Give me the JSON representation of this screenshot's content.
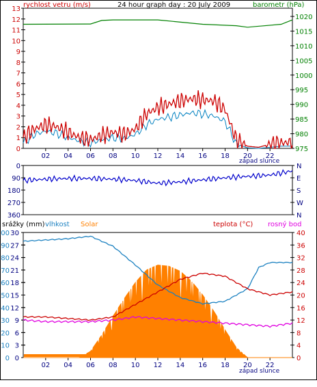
{
  "top_chart": {
    "left_title": "rychlost vetru (m/s)",
    "center_title": "24 hour graph day : 20 July 2009",
    "right_title": "barometr (hPa)",
    "left_ticks": [
      "0",
      "1",
      "2",
      "3",
      "4",
      "5",
      "6",
      "7",
      "8",
      "9",
      "10",
      "11",
      "12",
      "13"
    ],
    "right_ticks": [
      "975",
      "980",
      "985",
      "990",
      "995",
      "1000",
      "1005",
      "1010",
      "1015",
      "1020"
    ],
    "x_ticks": [
      "02",
      "04",
      "06",
      "08",
      "10",
      "12",
      "14",
      "16",
      "18",
      "20",
      "22"
    ],
    "sunset_label": "západ slunce",
    "colors": {
      "wind": "#cc0000",
      "gust": "#0080c0",
      "pressure": "#008000"
    }
  },
  "mid_chart": {
    "left_ticks": [
      "360",
      "270",
      "180",
      "90",
      "0"
    ],
    "right_ticks": [
      "N",
      "W",
      "S",
      "E",
      "N"
    ],
    "color": "#0000cc"
  },
  "bottom_chart": {
    "labels": {
      "precip": "srážky (mm)",
      "humidity": "vlhkost",
      "solar": "Solar",
      "temp": "teplota (°C)",
      "dew": "rosný bod"
    },
    "precip_ticks": [
      "0",
      "3",
      "6",
      "9",
      "12",
      "15",
      "18",
      "21",
      "24",
      "27",
      "30"
    ],
    "humidity_ticks": [
      "0",
      "10",
      "20",
      "30",
      "40",
      "50",
      "60",
      "70",
      "80",
      "90",
      "100"
    ],
    "temp_ticks": [
      "0",
      "4",
      "8",
      "12",
      "16",
      "20",
      "24",
      "28",
      "32",
      "36",
      "40"
    ],
    "x_ticks": [
      "02",
      "04",
      "06",
      "08",
      "10",
      "12",
      "14",
      "16",
      "18",
      "20",
      "22"
    ],
    "sunset_label": "západ slunce",
    "colors": {
      "humidity": "#1a80c0",
      "solar": "#ff8000",
      "temp": "#cc0000",
      "dew": "#e000e0"
    }
  },
  "chart_data": [
    {
      "type": "line",
      "title": "24 hour graph day : 20 July 2009",
      "xlabel": "",
      "x_range": [
        0,
        24
      ],
      "series": [
        {
          "name": "rychlost vetru (m/s)",
          "axis": "left",
          "ylim": [
            0,
            13
          ],
          "points": [
            [
              0,
              1
            ],
            [
              1,
              1.8
            ],
            [
              2,
              2.2
            ],
            [
              3,
              2
            ],
            [
              4,
              1.5
            ],
            [
              5,
              1
            ],
            [
              6,
              0.8
            ],
            [
              7,
              1.2
            ],
            [
              8,
              1.5
            ],
            [
              9,
              1.3
            ],
            [
              10,
              1.8
            ],
            [
              11,
              3.2
            ],
            [
              12,
              3.8
            ],
            [
              13,
              4.1
            ],
            [
              14,
              4.4
            ],
            [
              15,
              4.6
            ],
            [
              16,
              4.5
            ],
            [
              17,
              4.4
            ],
            [
              18,
              3.6
            ],
            [
              19,
              0.8
            ],
            [
              20,
              0.2
            ],
            [
              21,
              0.1
            ],
            [
              22,
              0.4
            ],
            [
              23,
              0.5
            ],
            [
              24,
              0.6
            ]
          ]
        },
        {
          "name": "gust",
          "axis": "left",
          "ylim": [
            0,
            13
          ],
          "points": [
            [
              0,
              0.5
            ],
            [
              1,
              1.3
            ],
            [
              2,
              1.6
            ],
            [
              3,
              1.4
            ],
            [
              4,
              1
            ],
            [
              5,
              0.7
            ],
            [
              6,
              0.5
            ],
            [
              7,
              0.8
            ],
            [
              8,
              1
            ],
            [
              9,
              0.9
            ],
            [
              10,
              1.3
            ],
            [
              11,
              2.2
            ],
            [
              12,
              2.7
            ],
            [
              13,
              2.9
            ],
            [
              14,
              3.1
            ],
            [
              15,
              3.3
            ],
            [
              16,
              3.2
            ],
            [
              17,
              3
            ],
            [
              18,
              2.5
            ],
            [
              19,
              0.4
            ],
            [
              20,
              0.05
            ],
            [
              21,
              0
            ],
            [
              22,
              0.1
            ],
            [
              23,
              0.2
            ],
            [
              24,
              0.2
            ]
          ]
        },
        {
          "name": "barometr (hPa)",
          "axis": "right",
          "ylim": [
            975,
            1023
          ],
          "points": [
            [
              0,
              1017.5
            ],
            [
              6,
              1017.6
            ],
            [
              7,
              1018.8
            ],
            [
              8,
              1019
            ],
            [
              12,
              1019
            ],
            [
              16,
              1017.5
            ],
            [
              19,
              1017
            ],
            [
              20,
              1016.5
            ],
            [
              23,
              1017.5
            ],
            [
              24,
              1019
            ]
          ]
        }
      ]
    },
    {
      "type": "line",
      "title": "",
      "xlabel": "",
      "x_range": [
        0,
        24
      ],
      "ylim": [
        0,
        360
      ],
      "series": [
        {
          "name": "",
          "points": [
            [
              0,
              250
            ],
            [
              2,
              260
            ],
            [
              4,
              265
            ],
            [
              6,
              265
            ],
            [
              8,
              260
            ],
            [
              10,
              250
            ],
            [
              12,
              230
            ],
            [
              14,
              240
            ],
            [
              16,
              255
            ],
            [
              18,
              270
            ],
            [
              20,
              280
            ],
            [
              22,
              290
            ],
            [
              24,
              320
            ]
          ]
        }
      ]
    },
    {
      "type": "area",
      "title": "",
      "xlabel": "",
      "x_range": [
        0,
        24
      ],
      "series": [
        {
          "name": "vlhkost",
          "axis": "left",
          "ylim": [
            0,
            100
          ],
          "points": [
            [
              0,
              93
            ],
            [
              2,
              94
            ],
            [
              4,
              95
            ],
            [
              6,
              97
            ],
            [
              8,
              89
            ],
            [
              10,
              74
            ],
            [
              12,
              58
            ],
            [
              14,
              48
            ],
            [
              16,
              43
            ],
            [
              18,
              45
            ],
            [
              20,
              55
            ],
            [
              21,
              72
            ],
            [
              22,
              76
            ],
            [
              24,
              76
            ]
          ]
        },
        {
          "name": "Solar",
          "axis": "left",
          "ylim": [
            0,
            100
          ],
          "points": [
            [
              0,
              0
            ],
            [
              5,
              0
            ],
            [
              6,
              5
            ],
            [
              7,
              18
            ],
            [
              8,
              33
            ],
            [
              9,
              47
            ],
            [
              10,
              60
            ],
            [
              11,
              70
            ],
            [
              12,
              74
            ],
            [
              13,
              73
            ],
            [
              14,
              69
            ],
            [
              15,
              61
            ],
            [
              16,
              50
            ],
            [
              17,
              37
            ],
            [
              18,
              22
            ],
            [
              19,
              8
            ],
            [
              20,
              0
            ],
            [
              24,
              0
            ]
          ]
        },
        {
          "name": "teplota (°C)",
          "axis": "right",
          "ylim": [
            0,
            40
          ],
          "points": [
            [
              0,
              13
            ],
            [
              2,
              13
            ],
            [
              4,
              12.5
            ],
            [
              6,
              12
            ],
            [
              8,
              13
            ],
            [
              10,
              17
            ],
            [
              12,
              21
            ],
            [
              14,
              25
            ],
            [
              16,
              27
            ],
            [
              18,
              26
            ],
            [
              20,
              22
            ],
            [
              22,
              20
            ],
            [
              24,
              21
            ]
          ]
        },
        {
          "name": "rosný bod",
          "axis": "right",
          "ylim": [
            0,
            40
          ],
          "points": [
            [
              0,
              12
            ],
            [
              2,
              11.5
            ],
            [
              4,
              11.5
            ],
            [
              6,
              11.5
            ],
            [
              8,
              12
            ],
            [
              10,
              13
            ],
            [
              12,
              12.5
            ],
            [
              14,
              12
            ],
            [
              16,
              11.5
            ],
            [
              18,
              11
            ],
            [
              20,
              10.5
            ],
            [
              22,
              10
            ],
            [
              24,
              11
            ]
          ]
        }
      ]
    }
  ]
}
